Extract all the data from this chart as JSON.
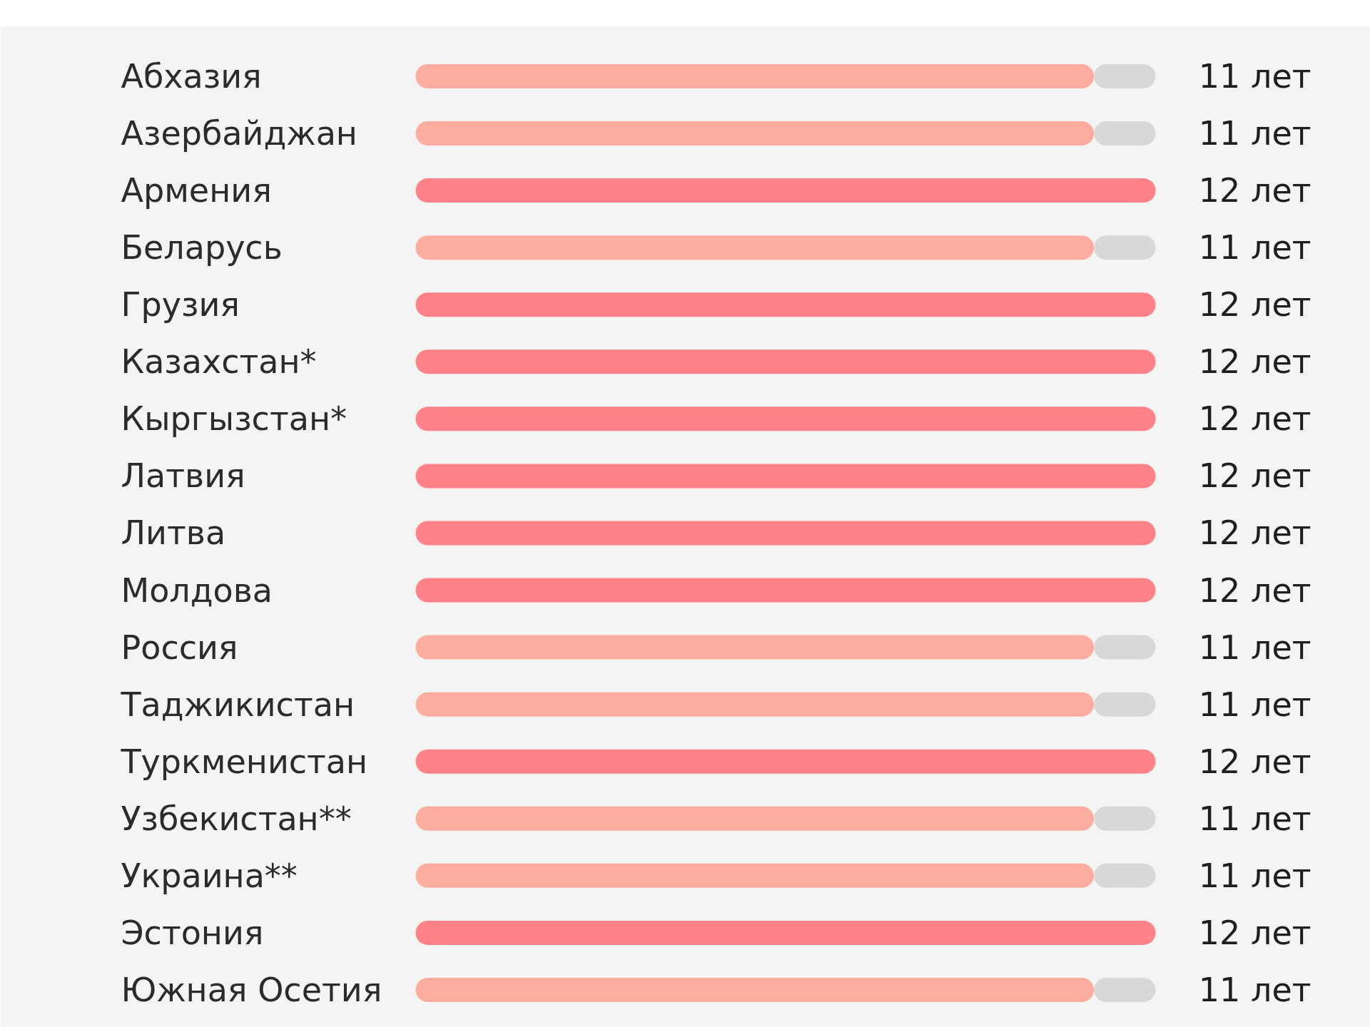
{
  "chart_data": {
    "type": "bar",
    "orientation": "horizontal",
    "stacked": true,
    "tick_labels": "y",
    "categories": [
      "Абхазия",
      "Азербайджан",
      "Армения",
      "Беларусь",
      "Грузия",
      "Казахстан*",
      "Кыргызстан*",
      "Латвия",
      "Литва",
      "Молдова",
      "Россия",
      "Таджикистан",
      "Туркменистан",
      "Узбекистан**",
      "Украина**",
      "Эстония",
      "Южная Осетия"
    ],
    "series": [
      {
        "colors": [
          "#fdaca0",
          "#fdaca0",
          "#fe8287",
          "#fdaca0",
          "#fe8287",
          "#fe8287",
          "#fe8287",
          "#fe8287",
          "#fe8287",
          "#fe8287",
          "#fdaca0",
          "#fdaca0",
          "#fe8287",
          "#fdaca0",
          "#fdaca0",
          "#fe8287",
          "#fdaca0"
        ],
        "values": [
          11,
          11,
          12,
          11,
          12,
          12,
          12,
          12,
          12,
          12,
          11,
          11,
          12,
          11,
          11,
          12,
          11
        ],
        "value_labels": [
          "11 лет",
          "11 лет",
          "12 лет",
          "11 лет",
          "12 лет",
          "12 лет",
          "12 лет",
          "12 лет",
          "12 лет",
          "12 лет",
          "11 лет",
          "11 лет",
          "12 лет",
          "11 лет",
          "11 лет",
          "12 лет",
          "11 лет"
        ]
      },
      {
        "color": "#d8d8d8",
        "values": [
          1,
          1,
          null,
          1,
          null,
          null,
          null,
          null,
          null,
          null,
          1,
          1,
          null,
          1,
          1,
          null,
          1
        ]
      }
    ]
  }
}
